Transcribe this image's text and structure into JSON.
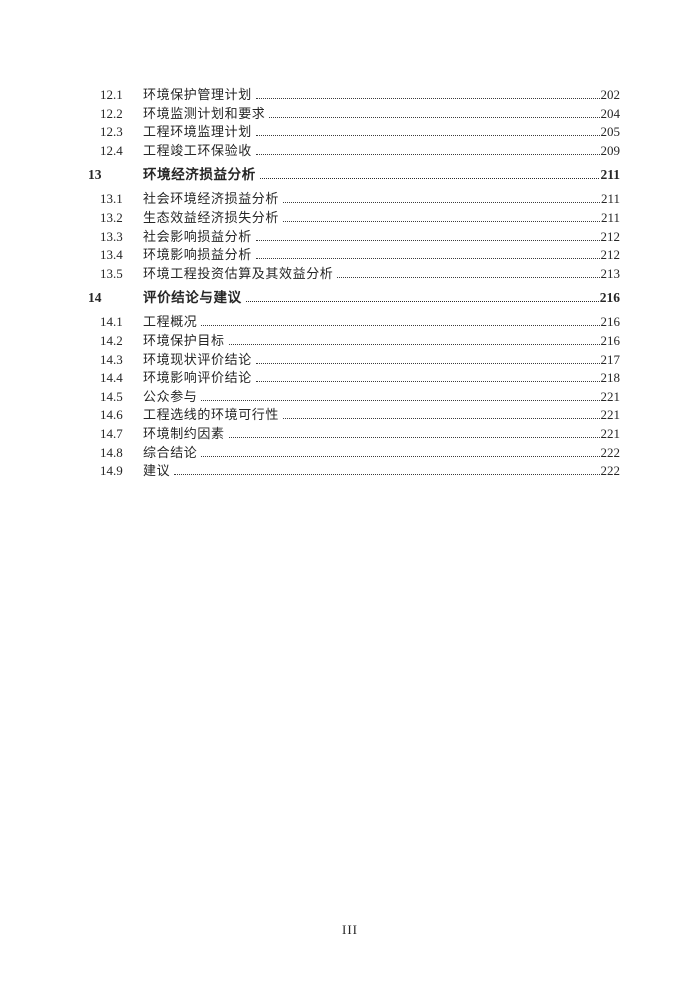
{
  "footer": {
    "page_number": "III"
  },
  "toc": {
    "entries": [
      {
        "level": "sub",
        "number": "12.1",
        "title": "环境保护管理计划",
        "page": "202"
      },
      {
        "level": "sub",
        "number": "12.2",
        "title": "环境监测计划和要求",
        "page": "204"
      },
      {
        "level": "sub",
        "number": "12.3",
        "title": "工程环境监理计划",
        "page": "205"
      },
      {
        "level": "sub",
        "number": "12.4",
        "title": "工程竣工环保验收",
        "page": "209"
      },
      {
        "level": "chapter",
        "number": "13",
        "title": "环境经济损益分析",
        "page": "211"
      },
      {
        "level": "sub",
        "number": "13.1",
        "title": "社会环境经济损益分析",
        "page": "211"
      },
      {
        "level": "sub",
        "number": "13.2",
        "title": "生态效益经济损失分析",
        "page": "211"
      },
      {
        "level": "sub",
        "number": "13.3",
        "title": "社会影响损益分析",
        "page": "212"
      },
      {
        "level": "sub",
        "number": "13.4",
        "title": "环境影响损益分析",
        "page": "212"
      },
      {
        "level": "sub",
        "number": "13.5",
        "title": "环境工程投资估算及其效益分析",
        "page": "213"
      },
      {
        "level": "chapter",
        "number": "14",
        "title": "评价结论与建议",
        "page": "216"
      },
      {
        "level": "sub",
        "number": "14.1",
        "title": "工程概况",
        "page": "216"
      },
      {
        "level": "sub",
        "number": "14.2",
        "title": "环境保护目标",
        "page": "216"
      },
      {
        "level": "sub",
        "number": "14.3",
        "title": "环境现状评价结论",
        "page": "217"
      },
      {
        "level": "sub",
        "number": "14.4",
        "title": "环境影响评价结论",
        "page": "218"
      },
      {
        "level": "sub",
        "number": "14.5",
        "title": "公众参与",
        "page": "221"
      },
      {
        "level": "sub",
        "number": "14.6",
        "title": "工程选线的环境可行性",
        "page": "221"
      },
      {
        "level": "sub",
        "number": "14.7",
        "title": "环境制约因素",
        "page": "221"
      },
      {
        "level": "sub",
        "number": "14.8",
        "title": "综合结论",
        "page": "222"
      },
      {
        "level": "sub",
        "number": "14.9",
        "title": "建议",
        "page": "222"
      }
    ]
  }
}
